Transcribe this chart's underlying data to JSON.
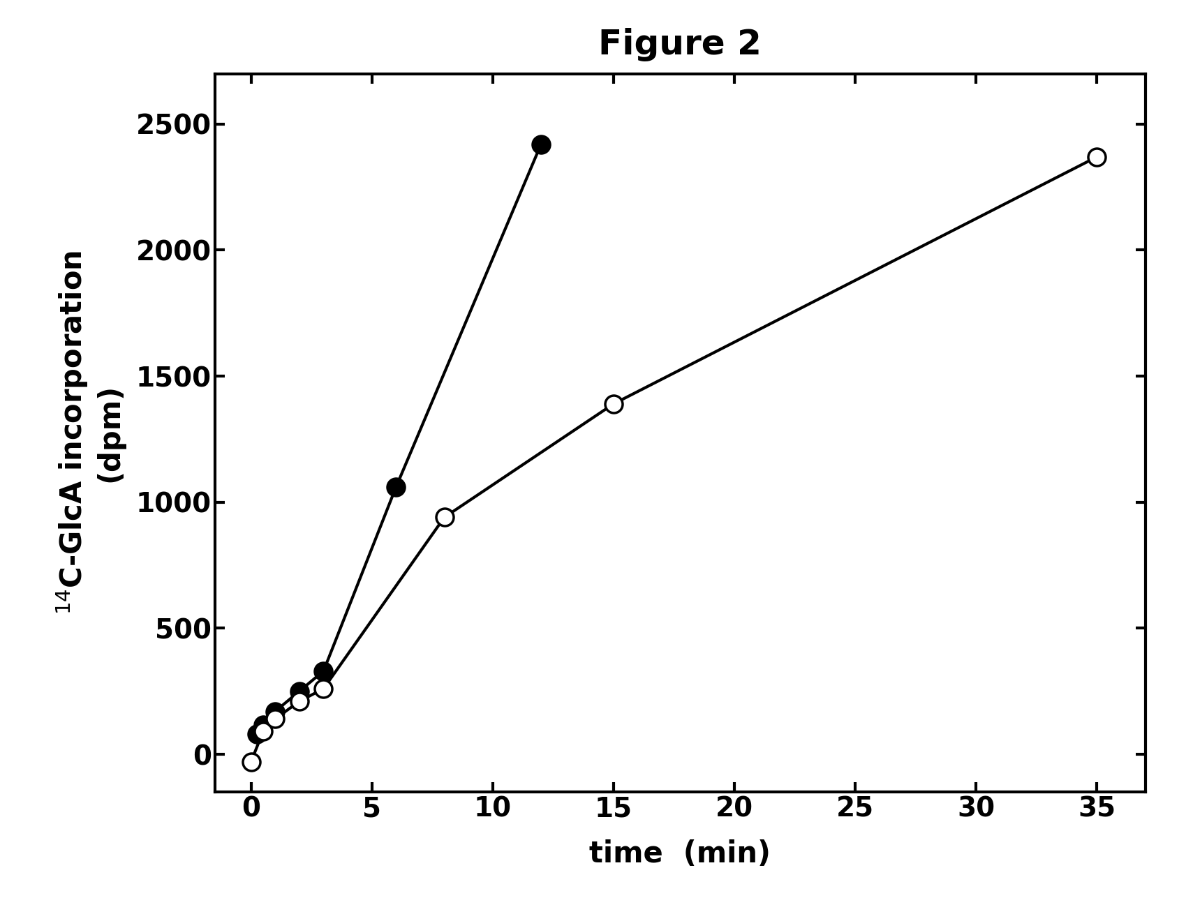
{
  "title": "Figure 2",
  "xlabel": "time  (min)",
  "ylabel_line1": "(dpm)",
  "ylabel_line2": "$^{14}$C-GlcA incorporation",
  "xlim": [
    -1.5,
    37
  ],
  "ylim": [
    -150,
    2700
  ],
  "xticks": [
    0,
    5,
    10,
    15,
    20,
    25,
    30,
    35
  ],
  "yticks": [
    0,
    500,
    1000,
    1500,
    2000,
    2500
  ],
  "filled_x": [
    0.25,
    0.5,
    1.0,
    2.0,
    3.0,
    6.0,
    12.0
  ],
  "filled_y": [
    80,
    115,
    170,
    250,
    330,
    1060,
    2420
  ],
  "open_x": [
    0,
    0.5,
    1.0,
    2.0,
    3.0,
    8.0,
    15.0,
    35.0
  ],
  "open_y": [
    -30,
    90,
    140,
    210,
    260,
    940,
    1390,
    2370
  ],
  "line_color": "#000000",
  "filled_face": "#000000",
  "open_face": "#ffffff",
  "marker_size": 18,
  "line_width": 3.0,
  "title_fontsize": 36,
  "label_fontsize": 30,
  "tick_fontsize": 28,
  "spine_linewidth": 3,
  "background_color": "#ffffff"
}
